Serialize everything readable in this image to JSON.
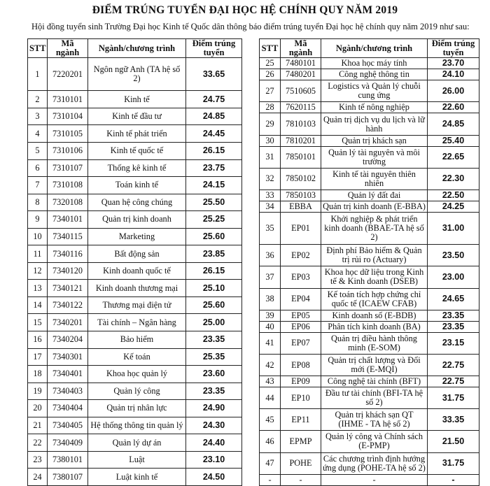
{
  "title": "ĐIỂM TRÚNG TUYỂN ĐẠI HỌC HỆ CHÍNH QUY NĂM 2019",
  "intro": "Hội đồng tuyển sinh Trường Đại học Kinh tế Quốc dân thông báo điểm trúng tuyển Đại học hệ chính quy năm 2019 như sau:",
  "headers": [
    "STT",
    "Mã ngành",
    "Ngành/chương trình",
    "Điểm trúng tuyển"
  ],
  "left_rows": [
    [
      "1",
      "7220201",
      "Ngôn ngữ Anh (TA hệ số 2)",
      "33.65"
    ],
    [
      "2",
      "7310101",
      "Kinh tế",
      "24.75"
    ],
    [
      "3",
      "7310104",
      "Kinh tế đầu tư",
      "24.85"
    ],
    [
      "4",
      "7310105",
      "Kinh tế phát triển",
      "24.45"
    ],
    [
      "5",
      "7310106",
      "Kinh tế quốc tế",
      "26.15"
    ],
    [
      "6",
      "7310107",
      "Thống kê kinh tế",
      "23.75"
    ],
    [
      "7",
      "7310108",
      "Toán kinh tế",
      "24.15"
    ],
    [
      "8",
      "7320108",
      "Quan hệ công chúng",
      "25.50"
    ],
    [
      "9",
      "7340101",
      "Quản trị kinh doanh",
      "25.25"
    ],
    [
      "10",
      "7340115",
      "Marketing",
      "25.60"
    ],
    [
      "11",
      "7340116",
      "Bất động sản",
      "23.85"
    ],
    [
      "12",
      "7340120",
      "Kinh doanh quốc tế",
      "26.15"
    ],
    [
      "13",
      "7340121",
      "Kinh doanh thương mại",
      "25.10"
    ],
    [
      "14",
      "7340122",
      "Thương mại điện tử",
      "25.60"
    ],
    [
      "15",
      "7340201",
      "Tài chính – Ngân hàng",
      "25.00"
    ],
    [
      "16",
      "7340204",
      "Bảo hiểm",
      "23.35"
    ],
    [
      "17",
      "7340301",
      "Kế toán",
      "25.35"
    ],
    [
      "18",
      "7340401",
      "Khoa học quản lý",
      "23.60"
    ],
    [
      "19",
      "7340403",
      "Quản lý công",
      "23.35"
    ],
    [
      "20",
      "7340404",
      "Quản trị nhân lực",
      "24.90"
    ],
    [
      "21",
      "7340405",
      "Hệ thống thông tin quản lý",
      "24.30"
    ],
    [
      "22",
      "7340409",
      "Quản lý dự án",
      "24.40"
    ],
    [
      "23",
      "7380101",
      "Luật",
      "23.10"
    ],
    [
      "24",
      "7380107",
      "Luật kinh tế",
      "24.50"
    ]
  ],
  "right_rows": [
    [
      "25",
      "7480101",
      "Khoa học máy tính",
      "23.70"
    ],
    [
      "26",
      "7480201",
      "Công nghệ thông tin",
      "24.10"
    ],
    [
      "27",
      "7510605",
      "Logistics và Quản lý chuỗi cung ứng",
      "26.00"
    ],
    [
      "28",
      "7620115",
      "Kinh tế nông nghiệp",
      "22.60"
    ],
    [
      "29",
      "7810103",
      "Quản trị dịch vụ du lịch và lữ hành",
      "24.85"
    ],
    [
      "30",
      "7810201",
      "Quản trị khách sạn",
      "25.40"
    ],
    [
      "31",
      "7850101",
      "Quản lý tài nguyên và môi trường",
      "22.65"
    ],
    [
      "32",
      "7850102",
      "Kinh tế tài nguyên thiên nhiên",
      "22.30"
    ],
    [
      "33",
      "7850103",
      "Quản lý đất đai",
      "22.50"
    ],
    [
      "34",
      "EBBA",
      "Quản trị kinh doanh (E-BBA)",
      "24.25"
    ],
    [
      "35",
      "EP01",
      "Khởi nghiệp & phát triển kinh doanh (BBAE-TA hệ số 2)",
      "31.00"
    ],
    [
      "36",
      "EP02",
      "Định phí Bảo hiểm & Quản trị rủi ro (Actuary)",
      "23.50"
    ],
    [
      "37",
      "EP03",
      "Khoa học dữ liệu trong Kinh tế & Kinh doanh (DSEB)",
      "23.00"
    ],
    [
      "38",
      "EP04",
      "Kế toán tích hợp chứng chỉ quốc tế (ICAEW CFAB)",
      "24.65"
    ],
    [
      "39",
      "EP05",
      "Kinh doanh số (E-BDB)",
      "23.35"
    ],
    [
      "40",
      "EP06",
      "Phân tích kinh doanh (BA)",
      "23.35"
    ],
    [
      "41",
      "EP07",
      "Quản trị điều hành thông minh (E-SOM)",
      "23.15"
    ],
    [
      "42",
      "EP08",
      "Quản trị chất lượng và Đổi mới (E-MQI)",
      "22.75"
    ],
    [
      "43",
      "EP09",
      "Công nghệ tài chính (BFT)",
      "22.75"
    ],
    [
      "44",
      "EP10",
      "Đầu tư tài chính (BFI-TA hệ số 2)",
      "31.75"
    ],
    [
      "45",
      "EP11",
      "Quản trị khách sạn QT (IHME - TA hệ số 2)",
      "33.35"
    ],
    [
      "46",
      "EPMP",
      "Quản lý công và Chính sách (E-PMP)",
      "21.50"
    ],
    [
      "47",
      "POHE",
      "Các chương trình định hướng ứng dụng (POHE-TA hệ số 2)",
      "31.75"
    ],
    [
      "-",
      "-",
      "-",
      "-"
    ]
  ]
}
